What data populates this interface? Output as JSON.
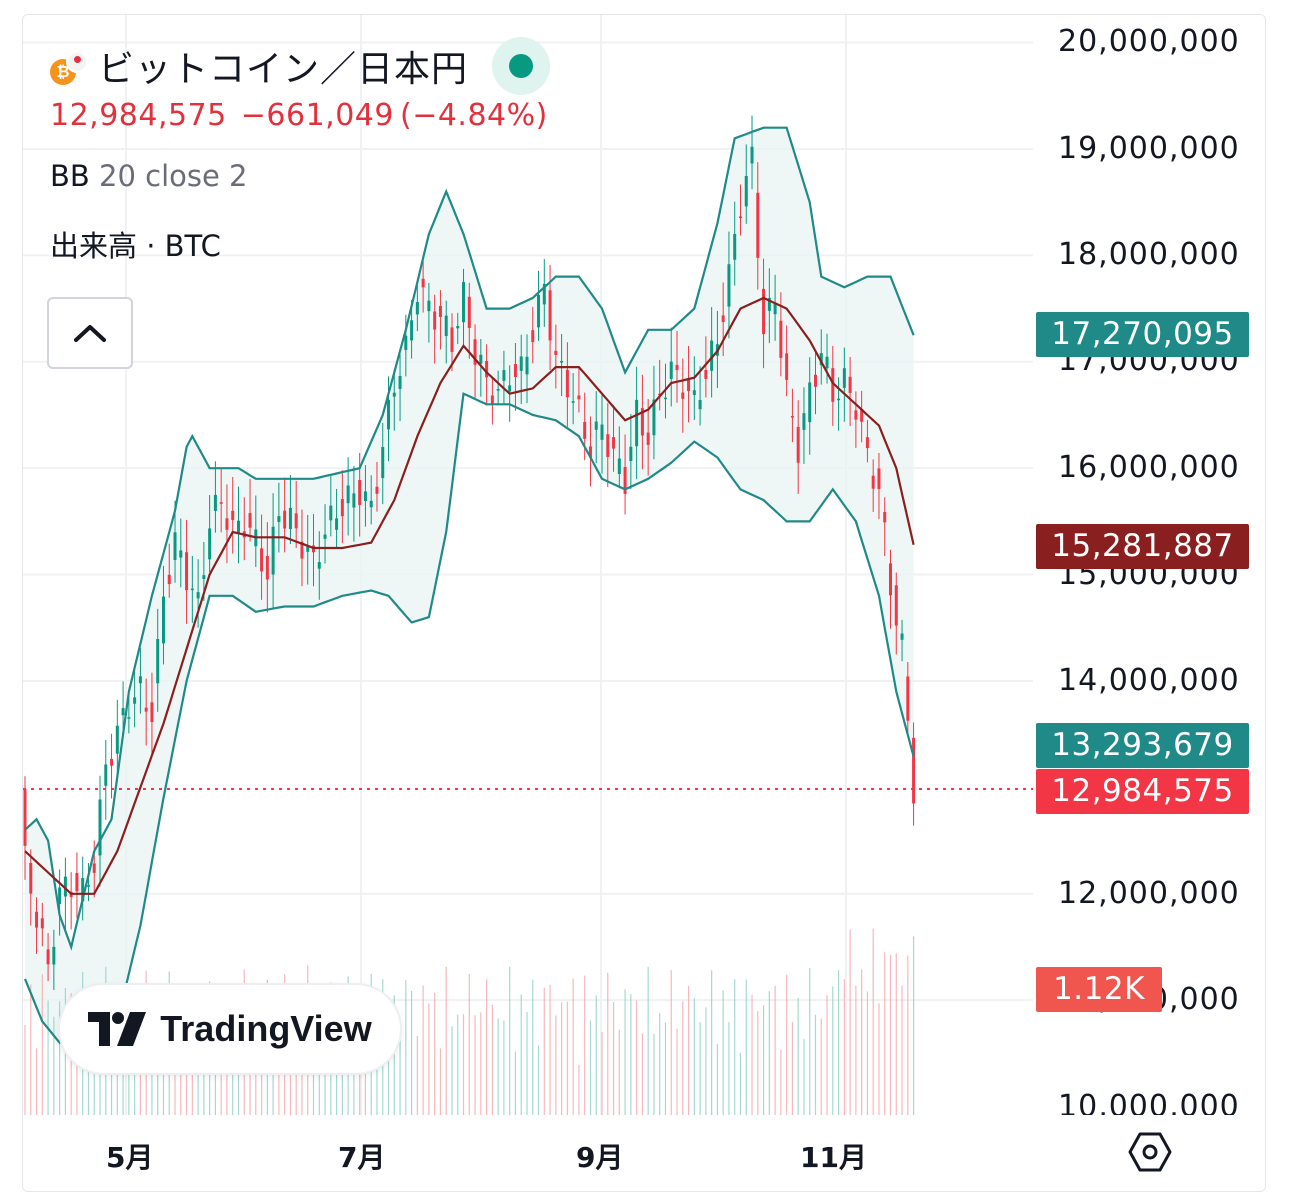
{
  "header": {
    "title": "ビットコイン／日本円",
    "last_price": "12,984,575",
    "change": "−661,049",
    "change_pct": "(−4.84%)",
    "indicator_name": "BB",
    "indicator_params": "20 close 2",
    "volume_label": "出来高 · BTC"
  },
  "branding": {
    "name": "TradingView"
  },
  "icons": {
    "coin": "bitcoin-icon",
    "status": "market-status-dot",
    "collapse": "chevron-up-icon",
    "settings": "settings-hexagon-icon"
  },
  "price_tags": {
    "bb_upper": "17,270,095",
    "bb_basis": "15,281,887",
    "bb_lower": "13,293,679",
    "last": "12,984,575",
    "volume": "1.12K"
  },
  "colors": {
    "up": "#089981",
    "down": "#f23645",
    "bb_band": "#1f8a87",
    "bb_basis": "#8a1f1f",
    "bb_fill": "#e8f4f3"
  },
  "chart_data": {
    "type": "candlestick",
    "y_ticks": [
      "20,000,000",
      "19,000,000",
      "18,000,000",
      "17,000,000",
      "16,000,000",
      "15,000,000",
      "14,000,000",
      "12,000,000",
      "11,000,000",
      "10,000,000"
    ],
    "x_ticks": [
      "5月",
      "7月",
      "9月",
      "11月"
    ],
    "ylim": [
      10000000,
      20000000
    ],
    "grid": true,
    "series": [
      {
        "name": "BB upper",
        "points": [
          [
            0,
            12600000
          ],
          [
            2,
            12700000
          ],
          [
            4,
            12500000
          ],
          [
            6,
            11800000
          ],
          [
            8,
            11500000
          ],
          [
            12,
            12400000
          ],
          [
            15,
            12700000
          ],
          [
            18,
            13900000
          ],
          [
            22,
            14800000
          ],
          [
            26,
            15600000
          ],
          [
            28,
            16200000
          ],
          [
            29,
            16300000
          ],
          [
            32,
            16000000
          ],
          [
            37,
            16000000
          ],
          [
            40,
            15900000
          ],
          [
            45,
            15900000
          ],
          [
            50,
            15900000
          ],
          [
            54,
            15950000
          ],
          [
            58,
            16000000
          ],
          [
            62,
            16500000
          ],
          [
            66,
            17300000
          ],
          [
            70,
            18200000
          ],
          [
            73,
            18600000
          ],
          [
            76,
            18200000
          ],
          [
            80,
            17500000
          ],
          [
            84,
            17500000
          ],
          [
            88,
            17600000
          ],
          [
            92,
            17800000
          ],
          [
            96,
            17800000
          ],
          [
            100,
            17500000
          ],
          [
            104,
            16900000
          ],
          [
            108,
            17300000
          ],
          [
            112,
            17300000
          ],
          [
            116,
            17500000
          ],
          [
            120,
            18300000
          ],
          [
            123,
            19100000
          ],
          [
            128,
            19200000
          ],
          [
            132,
            19200000
          ],
          [
            136,
            18500000
          ],
          [
            138,
            17800000
          ],
          [
            142,
            17700000
          ],
          [
            146,
            17800000
          ],
          [
            150,
            17800000
          ],
          [
            154,
            17250000
          ]
        ]
      },
      {
        "name": "BB basis",
        "points": [
          [
            0,
            12400000
          ],
          [
            4,
            12200000
          ],
          [
            8,
            12000000
          ],
          [
            12,
            12000000
          ],
          [
            16,
            12400000
          ],
          [
            20,
            13000000
          ],
          [
            24,
            13600000
          ],
          [
            28,
            14300000
          ],
          [
            32,
            15000000
          ],
          [
            36,
            15400000
          ],
          [
            40,
            15350000
          ],
          [
            45,
            15350000
          ],
          [
            50,
            15250000
          ],
          [
            55,
            15250000
          ],
          [
            60,
            15300000
          ],
          [
            64,
            15700000
          ],
          [
            68,
            16300000
          ],
          [
            72,
            16800000
          ],
          [
            76,
            17150000
          ],
          [
            80,
            16900000
          ],
          [
            84,
            16700000
          ],
          [
            88,
            16750000
          ],
          [
            92,
            16950000
          ],
          [
            96,
            16950000
          ],
          [
            100,
            16700000
          ],
          [
            104,
            16450000
          ],
          [
            108,
            16550000
          ],
          [
            112,
            16800000
          ],
          [
            116,
            16850000
          ],
          [
            120,
            17100000
          ],
          [
            124,
            17500000
          ],
          [
            128,
            17600000
          ],
          [
            132,
            17500000
          ],
          [
            136,
            17200000
          ],
          [
            140,
            16800000
          ],
          [
            144,
            16600000
          ],
          [
            148,
            16400000
          ],
          [
            151,
            16000000
          ],
          [
            154,
            15280000
          ]
        ]
      },
      {
        "name": "BB lower",
        "points": [
          [
            0,
            11200000
          ],
          [
            3,
            10800000
          ],
          [
            6,
            10600000
          ],
          [
            9,
            10650000
          ],
          [
            12,
            10500000
          ],
          [
            16,
            10800000
          ],
          [
            20,
            11700000
          ],
          [
            24,
            12900000
          ],
          [
            28,
            14000000
          ],
          [
            32,
            14800000
          ],
          [
            36,
            14800000
          ],
          [
            40,
            14650000
          ],
          [
            45,
            14700000
          ],
          [
            50,
            14700000
          ],
          [
            55,
            14800000
          ],
          [
            60,
            14850000
          ],
          [
            63,
            14800000
          ],
          [
            67,
            14550000
          ],
          [
            70,
            14600000
          ],
          [
            73,
            15400000
          ],
          [
            76,
            16700000
          ],
          [
            80,
            16600000
          ],
          [
            84,
            16600000
          ],
          [
            88,
            16500000
          ],
          [
            92,
            16450000
          ],
          [
            96,
            16300000
          ],
          [
            100,
            15900000
          ],
          [
            104,
            15800000
          ],
          [
            108,
            15900000
          ],
          [
            112,
            16050000
          ],
          [
            116,
            16250000
          ],
          [
            120,
            16100000
          ],
          [
            124,
            15800000
          ],
          [
            128,
            15700000
          ],
          [
            132,
            15500000
          ],
          [
            136,
            15500000
          ],
          [
            140,
            15800000
          ],
          [
            144,
            15500000
          ],
          [
            148,
            14800000
          ],
          [
            151,
            13900000
          ],
          [
            154,
            13290000
          ]
        ]
      }
    ],
    "close_points": [
      [
        0,
        12300000
      ],
      [
        2,
        11800000
      ],
      [
        4,
        11300000
      ],
      [
        6,
        12000000
      ],
      [
        8,
        12100000
      ],
      [
        10,
        12000000
      ],
      [
        12,
        12300000
      ],
      [
        14,
        13200000
      ],
      [
        16,
        13500000
      ],
      [
        18,
        13800000
      ],
      [
        20,
        13900000
      ],
      [
        22,
        13700000
      ],
      [
        24,
        14800000
      ],
      [
        26,
        15300000
      ],
      [
        28,
        15000000
      ],
      [
        30,
        14700000
      ],
      [
        32,
        15500000
      ],
      [
        34,
        15700000
      ],
      [
        36,
        15400000
      ],
      [
        38,
        15500000
      ],
      [
        40,
        15300000
      ],
      [
        42,
        15000000
      ],
      [
        44,
        15600000
      ],
      [
        46,
        15500000
      ],
      [
        48,
        15300000
      ],
      [
        50,
        15100000
      ],
      [
        52,
        15400000
      ],
      [
        54,
        15600000
      ],
      [
        56,
        15700000
      ],
      [
        58,
        15800000
      ],
      [
        60,
        15600000
      ],
      [
        62,
        16200000
      ],
      [
        64,
        16800000
      ],
      [
        66,
        17100000
      ],
      [
        68,
        17700000
      ],
      [
        70,
        17500000
      ],
      [
        72,
        17400000
      ],
      [
        74,
        17200000
      ],
      [
        76,
        17600000
      ],
      [
        78,
        17100000
      ],
      [
        80,
        16800000
      ],
      [
        82,
        16700000
      ],
      [
        84,
        16900000
      ],
      [
        86,
        16900000
      ],
      [
        88,
        17300000
      ],
      [
        90,
        17700000
      ],
      [
        92,
        17000000
      ],
      [
        94,
        16800000
      ],
      [
        96,
        16500000
      ],
      [
        98,
        16200000
      ],
      [
        100,
        16400000
      ],
      [
        102,
        16100000
      ],
      [
        104,
        15900000
      ],
      [
        106,
        16500000
      ],
      [
        108,
        16300000
      ],
      [
        110,
        16700000
      ],
      [
        112,
        16900000
      ],
      [
        114,
        16800000
      ],
      [
        116,
        16600000
      ],
      [
        118,
        16900000
      ],
      [
        120,
        17200000
      ],
      [
        122,
        17800000
      ],
      [
        124,
        18500000
      ],
      [
        126,
        18900000
      ],
      [
        128,
        17300000
      ],
      [
        130,
        17600000
      ],
      [
        132,
        16700000
      ],
      [
        134,
        16200000
      ],
      [
        136,
        16700000
      ],
      [
        138,
        17100000
      ],
      [
        140,
        16700000
      ],
      [
        142,
        16800000
      ],
      [
        144,
        16600000
      ],
      [
        146,
        16100000
      ],
      [
        148,
        15800000
      ],
      [
        150,
        14900000
      ],
      [
        152,
        14300000
      ],
      [
        154,
        12984575
      ]
    ],
    "last_price": 12984575
  }
}
